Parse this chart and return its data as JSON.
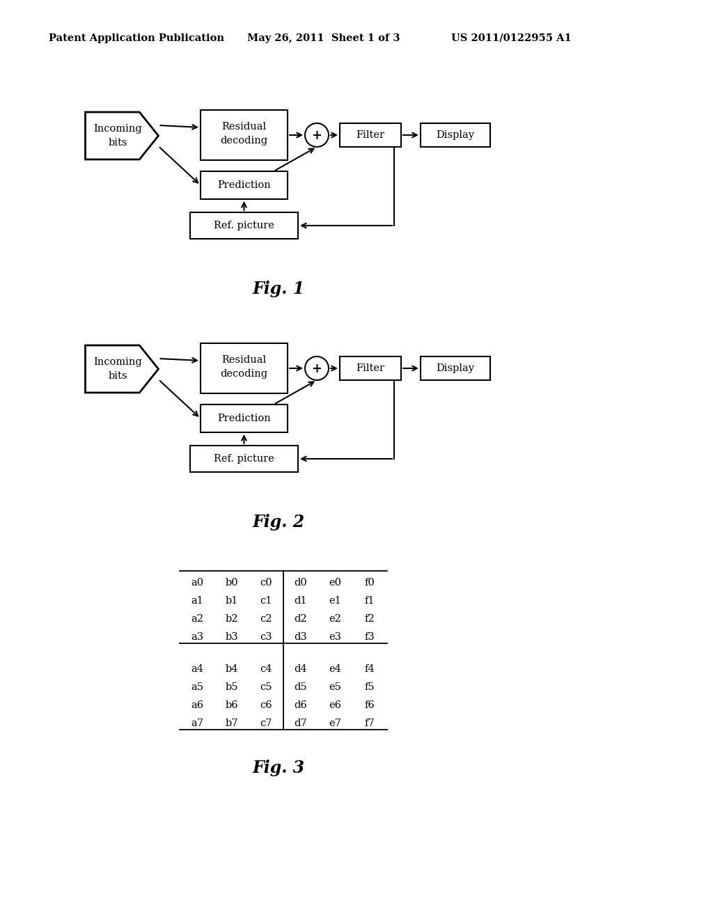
{
  "bg_color": "#ffffff",
  "header_left": "Patent Application Publication",
  "header_mid": "May 26, 2011  Sheet 1 of 3",
  "header_right": "US 2011/0122955 A1",
  "fig1_label": "Fig. 1",
  "fig2_label": "Fig. 2",
  "fig3_label": "Fig. 3",
  "grid3_rows_top": [
    [
      "a0",
      "b0",
      "c0",
      "d0",
      "e0",
      "f0"
    ],
    [
      "a1",
      "b1",
      "c1",
      "d1",
      "e1",
      "f1"
    ],
    [
      "a2",
      "b2",
      "c2",
      "d2",
      "e2",
      "f2"
    ],
    [
      "a3",
      "b3",
      "c3",
      "d3",
      "e3",
      "f3"
    ]
  ],
  "grid3_rows_bot": [
    [
      "a4",
      "b4",
      "c4",
      "d4",
      "e4",
      "f4"
    ],
    [
      "a5",
      "b5",
      "c5",
      "d5",
      "e5",
      "f5"
    ],
    [
      "a6",
      "b6",
      "c6",
      "d6",
      "e6",
      "f6"
    ],
    [
      "a7",
      "b7",
      "c7",
      "d7",
      "e7",
      "f7"
    ]
  ]
}
